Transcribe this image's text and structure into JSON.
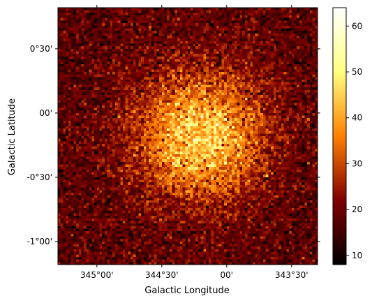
{
  "chart_data": {
    "type": "heatmap",
    "title": "",
    "xlabel": "Galactic Longitude",
    "ylabel": "Galactic Latitude",
    "x_ticks": [
      {
        "label": "345°00'",
        "value": 345.0
      },
      {
        "label": "344°30'",
        "value": 344.5
      },
      {
        "label": "00'",
        "value": 344.0
      },
      {
        "label": "343°30'",
        "value": 343.5
      }
    ],
    "y_ticks": [
      {
        "label": "0°30'",
        "value": 0.5
      },
      {
        "label": "00'",
        "value": 0.0
      },
      {
        "label": "-0°30'",
        "value": -0.5
      },
      {
        "label": "-1°00'",
        "value": -1.0
      }
    ],
    "x_range": [
      345.3,
      343.3
    ],
    "y_range": [
      -1.18,
      0.82
    ],
    "grid": false,
    "colormap": "afmhot",
    "colorbar": {
      "min": 8,
      "max": 64,
      "ticks": [
        "10",
        "20",
        "30",
        "40",
        "50",
        "60"
      ]
    },
    "map": {
      "pixels": [
        100,
        100
      ],
      "background_counts": 18,
      "peak_counts": 46,
      "center": {
        "l": 344.2,
        "b": -0.18
      },
      "sigma_deg": 0.33
    }
  }
}
